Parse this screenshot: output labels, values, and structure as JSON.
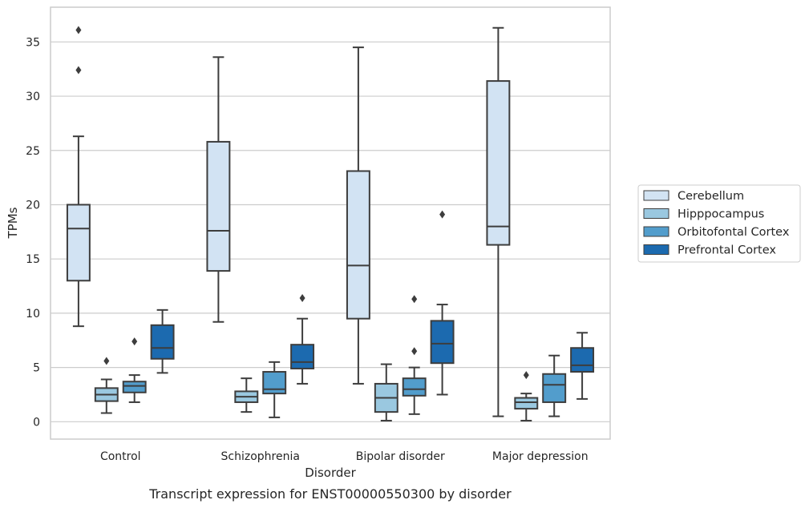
{
  "caption": "Transcript expression for ENST00000550300 by disorder",
  "chart_data": {
    "type": "box",
    "title": "",
    "xlabel": "Disorder",
    "ylabel": "TPMs",
    "ylim": [
      -1.6,
      38.2
    ],
    "yticks": [
      0,
      5,
      10,
      15,
      20,
      25,
      30,
      35
    ],
    "grid": "horizontal",
    "legend_position": "right",
    "categories": [
      "Control",
      "Schizophrenia",
      "Bipolar disorder",
      "Major depression"
    ],
    "series": [
      {
        "name": "Cerebellum",
        "color": "#d2e3f3",
        "boxes": [
          {
            "whisker_low": 8.8,
            "q1": 13.0,
            "median": 17.8,
            "q3": 20.0,
            "whisker_high": 26.3,
            "outliers": [
              32.4,
              36.1
            ]
          },
          {
            "whisker_low": 9.2,
            "q1": 13.9,
            "median": 17.6,
            "q3": 25.8,
            "whisker_high": 33.6,
            "outliers": []
          },
          {
            "whisker_low": 3.5,
            "q1": 9.5,
            "median": 14.4,
            "q3": 23.1,
            "whisker_high": 34.5,
            "outliers": []
          },
          {
            "whisker_low": 0.5,
            "q1": 16.3,
            "median": 18.0,
            "q3": 31.4,
            "whisker_high": 36.3,
            "outliers": []
          }
        ]
      },
      {
        "name": "Hipppocampus",
        "color": "#9ac8e0",
        "boxes": [
          {
            "whisker_low": 0.8,
            "q1": 1.9,
            "median": 2.5,
            "q3": 3.1,
            "whisker_high": 3.9,
            "outliers": [
              5.6
            ]
          },
          {
            "whisker_low": 0.9,
            "q1": 1.8,
            "median": 2.3,
            "q3": 2.8,
            "whisker_high": 4.0,
            "outliers": []
          },
          {
            "whisker_low": 0.1,
            "q1": 0.9,
            "median": 2.2,
            "q3": 3.5,
            "whisker_high": 5.3,
            "outliers": []
          },
          {
            "whisker_low": 0.1,
            "q1": 1.2,
            "median": 1.8,
            "q3": 2.2,
            "whisker_high": 2.6,
            "outliers": [
              4.3
            ]
          }
        ]
      },
      {
        "name": "Orbitofontal Cortex",
        "color": "#529dcc",
        "boxes": [
          {
            "whisker_low": 1.8,
            "q1": 2.7,
            "median": 3.3,
            "q3": 3.7,
            "whisker_high": 4.3,
            "outliers": [
              7.4
            ]
          },
          {
            "whisker_low": 0.4,
            "q1": 2.6,
            "median": 3.0,
            "q3": 4.6,
            "whisker_high": 5.5,
            "outliers": []
          },
          {
            "whisker_low": 0.7,
            "q1": 2.4,
            "median": 3.0,
            "q3": 4.0,
            "whisker_high": 5.0,
            "outliers": [
              6.5,
              11.3
            ]
          },
          {
            "whisker_low": 0.5,
            "q1": 1.8,
            "median": 3.4,
            "q3": 4.4,
            "whisker_high": 6.1,
            "outliers": []
          }
        ]
      },
      {
        "name": "Prefrontal Cortex",
        "color": "#1c6aaf",
        "boxes": [
          {
            "whisker_low": 4.5,
            "q1": 5.8,
            "median": 6.8,
            "q3": 8.9,
            "whisker_high": 10.3,
            "outliers": []
          },
          {
            "whisker_low": 3.5,
            "q1": 4.9,
            "median": 5.5,
            "q3": 7.1,
            "whisker_high": 9.5,
            "outliers": [
              11.4
            ]
          },
          {
            "whisker_low": 2.5,
            "q1": 5.4,
            "median": 7.2,
            "q3": 9.3,
            "whisker_high": 10.8,
            "outliers": [
              19.1
            ]
          },
          {
            "whisker_low": 2.1,
            "q1": 4.6,
            "median": 5.2,
            "q3": 6.8,
            "whisker_high": 8.2,
            "outliers": []
          }
        ]
      }
    ]
  }
}
